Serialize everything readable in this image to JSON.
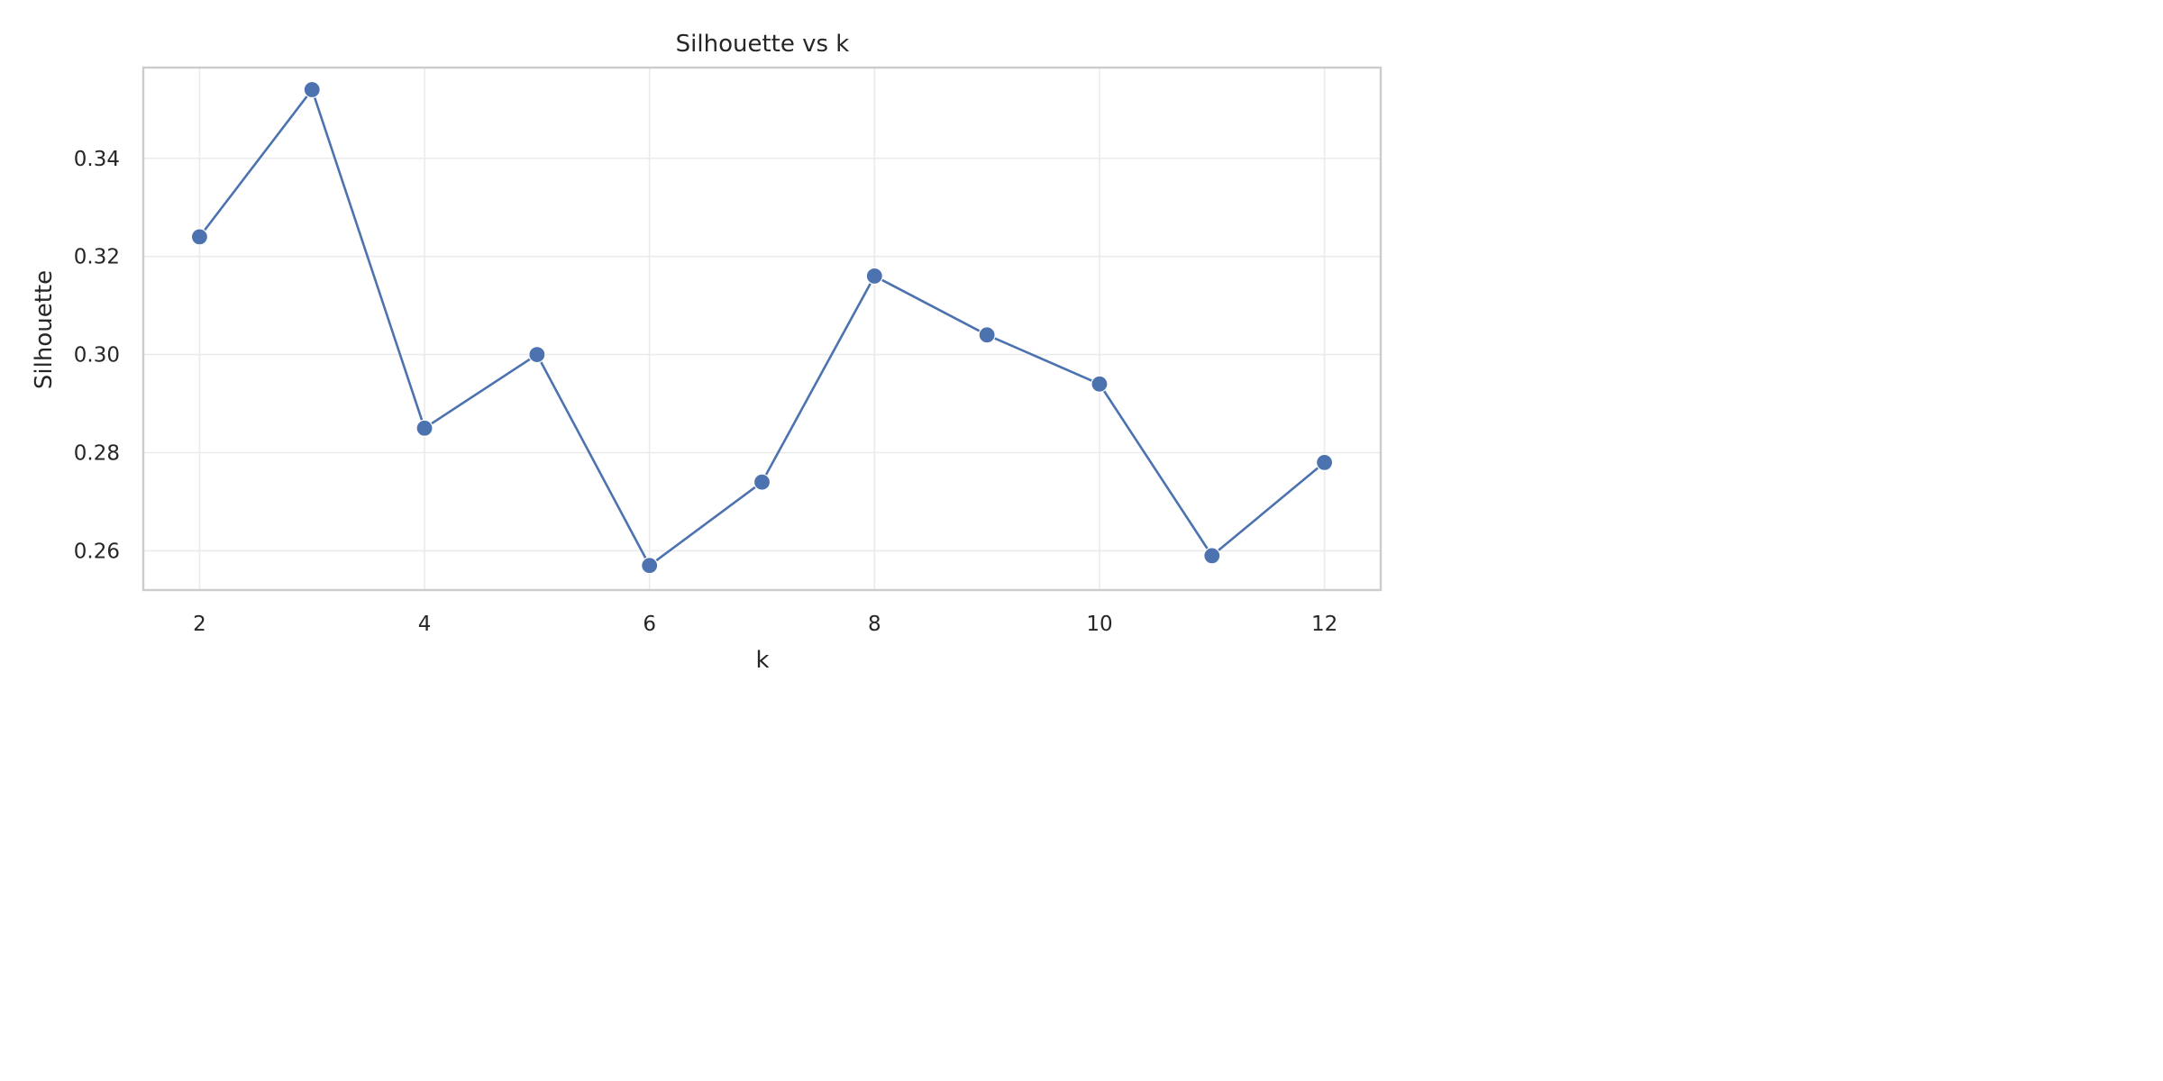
{
  "chart_data": {
    "type": "line",
    "title": "Silhouette vs k",
    "xlabel": "k",
    "ylabel": "Silhouette",
    "x": [
      2,
      3,
      4,
      5,
      6,
      7,
      8,
      9,
      10,
      11,
      12
    ],
    "series": [
      {
        "values": [
          0.324,
          0.354,
          0.285,
          0.3,
          0.257,
          0.274,
          0.316,
          0.304,
          0.294,
          0.259,
          0.278
        ]
      }
    ],
    "xlim": [
      1.5,
      12.5
    ],
    "ylim": [
      0.252,
      0.3585
    ],
    "x_ticks": [
      2,
      4,
      6,
      8,
      10,
      12
    ],
    "x_tick_labels": [
      "2",
      "4",
      "6",
      "8",
      "10",
      "12"
    ],
    "y_ticks": [
      0.26,
      0.28,
      0.3,
      0.32,
      0.34
    ],
    "y_tick_labels": [
      "0.26",
      "0.28",
      "0.30",
      "0.32",
      "0.34"
    ],
    "grid": true,
    "markers": true,
    "colors": {
      "series": "#4c72b0",
      "grid": "#ebebeb",
      "frame": "#cccccc",
      "text": "#262626"
    }
  }
}
